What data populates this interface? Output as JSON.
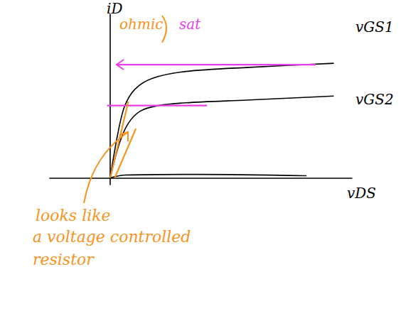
{
  "chart_data": {
    "type": "line",
    "x_label": "vDS",
    "y_label": "iD",
    "xlim": [
      -2,
      8
    ],
    "ylim": [
      -0.5,
      12
    ],
    "xticks": [],
    "yticks": [],
    "tick_labels": false,
    "grid": false,
    "series": [
      {
        "name": "vGS1",
        "color": "#000000",
        "line_style": "solid",
        "marker": "none",
        "x": [
          0,
          0.24,
          0.47,
          0.82,
          1.4,
          2.5,
          4.6,
          7.4
        ],
        "values": [
          0,
          3.1,
          5.2,
          6.5,
          7.3,
          7.8,
          8.1,
          8.4
        ]
      },
      {
        "name": "vGS2",
        "color": "#000000",
        "line_style": "solid",
        "marker": "none",
        "x": [
          0,
          0.3,
          0.6,
          1.0,
          1.6,
          2.5,
          4.5,
          7.4
        ],
        "values": [
          0,
          2.5,
          4.0,
          4.9,
          5.3,
          5.5,
          5.7,
          6.0
        ]
      },
      {
        "color": "#000000",
        "line_style": "solid",
        "marker": "none",
        "x": [
          0,
          0.5,
          3,
          6.5
        ],
        "values": [
          0,
          0.2,
          0.25,
          0.15
        ]
      },
      {
        "color": "#e83ee8",
        "line_style": "solid",
        "marker": "none",
        "x": [
          0.2,
          6.8
        ],
        "values": [
          8.3,
          8.3
        ]
      },
      {
        "color": "#e83ee8",
        "line_style": "solid",
        "marker": "none",
        "x": [
          -0.1,
          3.2
        ],
        "values": [
          5.3,
          5.3
        ]
      },
      {
        "color": "#f7941d",
        "line_style": "solid",
        "marker": "none",
        "x": [
          0,
          0.6
        ],
        "values": [
          0,
          5.6
        ]
      },
      {
        "color": "#f7941d",
        "line_style": "solid",
        "marker": "none",
        "x": [
          0.15,
          0.85
        ],
        "values": [
          0,
          3.6
        ]
      }
    ],
    "annotations": [
      {
        "text": "ohmic",
        "color": "#f7941d"
      },
      {
        "text": "sat",
        "color": "#e83ee8"
      },
      {
        "text": "looks like",
        "color": "#f7941d"
      },
      {
        "text": "a voltage controlled",
        "color": "#f7941d"
      },
      {
        "text": "resistor",
        "color": "#f7941d"
      }
    ]
  }
}
